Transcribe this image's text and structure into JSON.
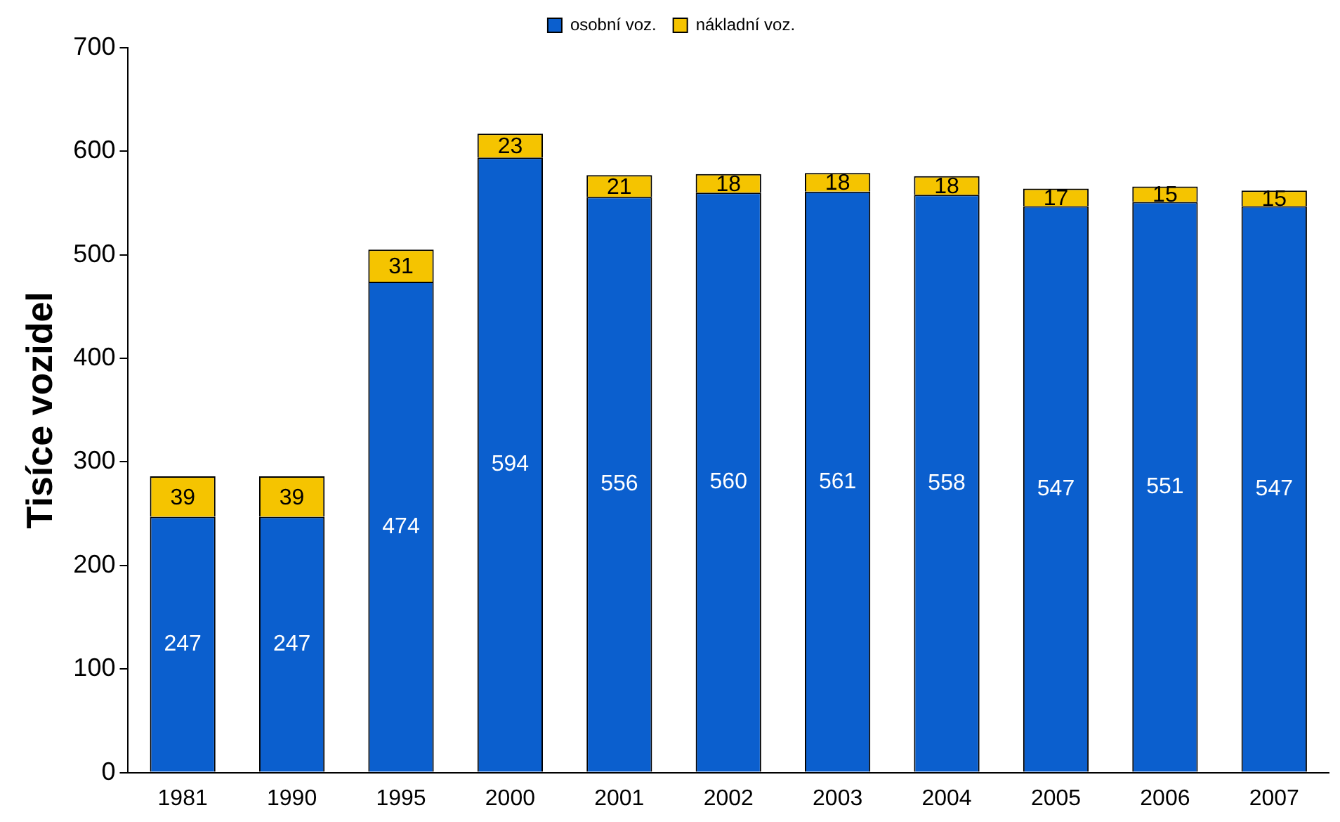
{
  "chart_data": {
    "type": "bar",
    "stacked": true,
    "ylabel": "Tisíce vozidel",
    "categories": [
      "1981",
      "1990",
      "1995",
      "2000",
      "2001",
      "2002",
      "2003",
      "2004",
      "2005",
      "2006",
      "2007"
    ],
    "series": [
      {
        "name": "osobní voz.",
        "color": "#0b5fce",
        "values": [
          247,
          247,
          474,
          594,
          556,
          560,
          561,
          558,
          547,
          551,
          547
        ]
      },
      {
        "name": "nákladní voz.",
        "color": "#f5c400",
        "values": [
          39,
          39,
          31,
          23,
          21,
          18,
          18,
          18,
          17,
          15,
          15
        ]
      }
    ],
    "ylim": [
      0,
      700
    ],
    "yticks": [
      0,
      100,
      200,
      300,
      400,
      500,
      600,
      700
    ],
    "grid": false,
    "legend": "top",
    "data_labels": true
  }
}
